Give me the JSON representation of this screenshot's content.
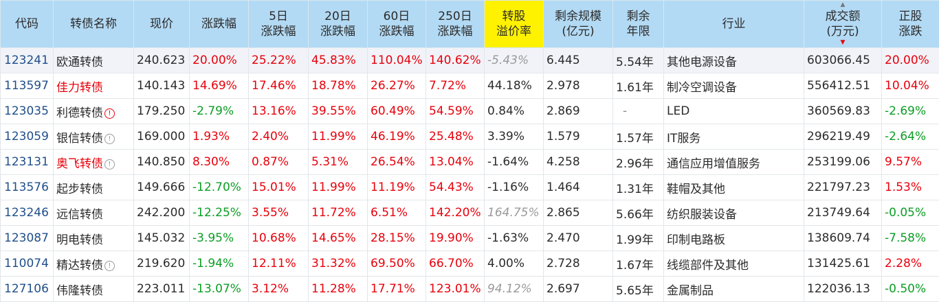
{
  "headers": [
    "代码",
    "转债名称",
    "现价",
    "涨跌幅",
    "5日\n涨跌幅",
    "20日\n涨跌幅",
    "60日\n涨跌幅",
    "250日\n涨跌幅",
    "转股\n溢价率",
    "剩余规模\n(亿元)",
    "剩余\n年限",
    "行业",
    "成交额\n(万元)",
    "正股\n涨跌"
  ],
  "highlight_color": "#fff200",
  "up_color": "#e8000b",
  "down_color": "#0b9d24",
  "rows": [
    {
      "code": "123241",
      "name": "欧通转债",
      "price": "240.623",
      "chg": "20.00%",
      "d5": "25.22%",
      "d20": "45.83%",
      "d60": "110.04%",
      "d250": "140.62%",
      "premium": "-5.43%",
      "scale": "6.445",
      "years": "5.54年",
      "industry": "其他电源设备",
      "amount": "603066.45",
      "stock_chg": "20.00%"
    },
    {
      "code": "113597",
      "name": "佳力转债",
      "price": "140.143",
      "chg": "14.69%",
      "d5": "17.46%",
      "d20": "18.78%",
      "d60": "26.27%",
      "d250": "7.72%",
      "premium": "44.18%",
      "scale": "2.978",
      "years": "1.61年",
      "industry": "制冷空调设备",
      "amount": "556412.51",
      "stock_chg": "10.04%"
    },
    {
      "code": "123035",
      "name": "利德转债",
      "price": "179.250",
      "chg": "-2.79%",
      "d5": "13.16%",
      "d20": "39.55%",
      "d60": "60.49%",
      "d250": "54.59%",
      "premium": "0.84%",
      "scale": "2.869",
      "years": "-",
      "industry": "LED",
      "amount": "360569.83",
      "stock_chg": "-2.69%"
    },
    {
      "code": "123059",
      "name": "银信转债",
      "price": "169.000",
      "chg": "1.93%",
      "d5": "2.40%",
      "d20": "11.99%",
      "d60": "46.19%",
      "d250": "25.48%",
      "premium": "3.39%",
      "scale": "1.579",
      "years": "1.57年",
      "industry": "IT服务",
      "amount": "296219.49",
      "stock_chg": "-2.64%"
    },
    {
      "code": "123131",
      "name": "奥飞转债",
      "price": "140.850",
      "chg": "8.30%",
      "d5": "0.87%",
      "d20": "5.31%",
      "d60": "26.54%",
      "d250": "13.04%",
      "premium": "-1.64%",
      "scale": "4.258",
      "years": "2.96年",
      "industry": "通信应用增值服务",
      "amount": "253199.06",
      "stock_chg": "9.57%"
    },
    {
      "code": "113576",
      "name": "起步转债",
      "price": "149.666",
      "chg": "-12.70%",
      "d5": "15.01%",
      "d20": "11.99%",
      "d60": "11.19%",
      "d250": "54.43%",
      "premium": "-1.16%",
      "scale": "1.464",
      "years": "1.31年",
      "industry": "鞋帽及其他",
      "amount": "221797.23",
      "stock_chg": "1.53%"
    },
    {
      "code": "123246",
      "name": "远信转债",
      "price": "242.200",
      "chg": "-12.25%",
      "d5": "3.55%",
      "d20": "11.72%",
      "d60": "6.51%",
      "d250": "142.20%",
      "premium": "164.75%",
      "scale": "2.865",
      "years": "5.66年",
      "industry": "纺织服装设备",
      "amount": "213749.64",
      "stock_chg": "-0.05%"
    },
    {
      "code": "123087",
      "name": "明电转债",
      "price": "145.032",
      "chg": "-3.95%",
      "d5": "10.68%",
      "d20": "14.65%",
      "d60": "28.15%",
      "d250": "19.90%",
      "premium": "-1.63%",
      "scale": "2.470",
      "years": "1.99年",
      "industry": "印制电路板",
      "amount": "138609.74",
      "stock_chg": "-7.58%"
    },
    {
      "code": "110074",
      "name": "精达转债",
      "price": "219.620",
      "chg": "-1.94%",
      "d5": "12.11%",
      "d20": "31.32%",
      "d60": "69.50%",
      "d250": "66.70%",
      "premium": "4.00%",
      "scale": "2.728",
      "years": "1.67年",
      "industry": "线缆部件及其他",
      "amount": "131425.61",
      "stock_chg": "2.28%"
    },
    {
      "code": "127106",
      "name": "伟隆转债",
      "price": "223.011",
      "chg": "-13.07%",
      "d5": "3.12%",
      "d20": "11.28%",
      "d60": "17.71%",
      "d250": "123.01%",
      "premium": "94.12%",
      "scale": "2.697",
      "years": "5.65年",
      "industry": "金属制品",
      "amount": "122036.13",
      "stock_chg": "-0.50%"
    }
  ],
  "name_red": [
    false,
    true,
    false,
    false,
    true,
    false,
    false,
    false,
    false,
    false
  ],
  "name_badge": [
    "",
    "",
    "!",
    "!",
    "!",
    "",
    "",
    "",
    "!",
    ""
  ],
  "badge_kind": [
    "",
    "",
    "red",
    "gray",
    "gray",
    "",
    "",
    "",
    "gray",
    ""
  ],
  "premium_gray": [
    true,
    false,
    false,
    false,
    false,
    false,
    true,
    false,
    false,
    true
  ],
  "selected_row": 0,
  "sort_indicator": {
    "up": "▲",
    "down": "▼"
  }
}
